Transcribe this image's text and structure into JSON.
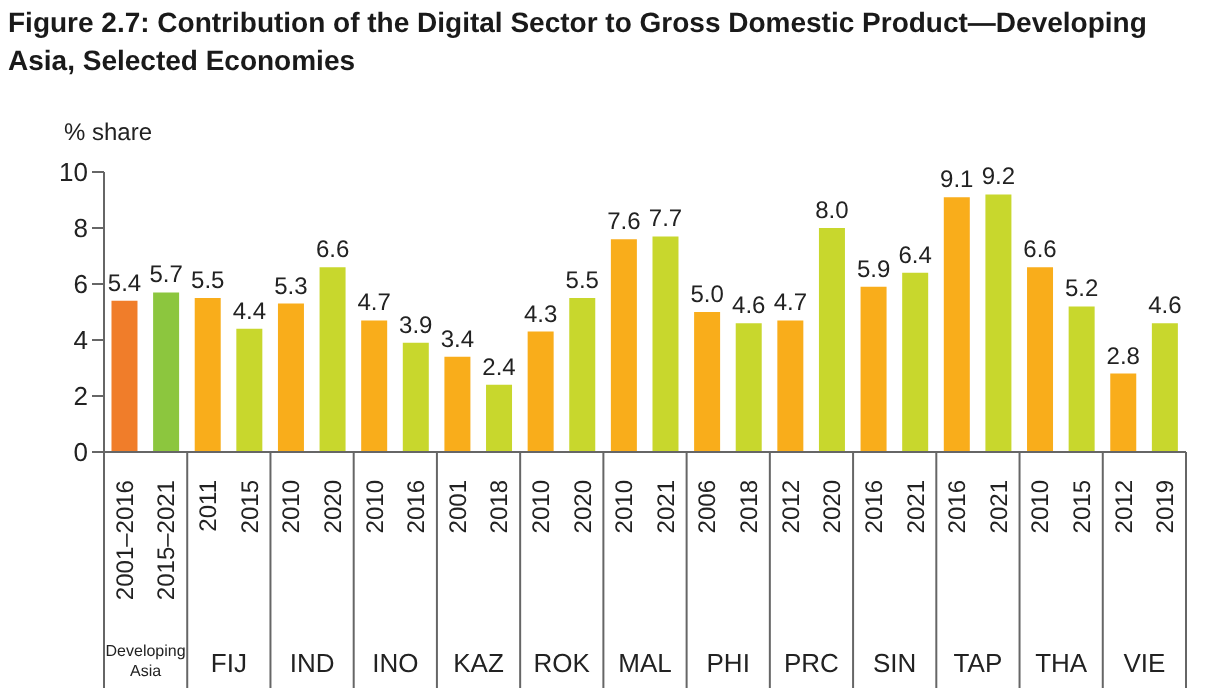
{
  "chart_data": {
    "type": "bar",
    "title": "Figure 2.7: Contribution of the Digital Sector to Gross Domestic Product—Developing Asia, Selected Economies",
    "ylabel": "% share",
    "categories": [
      "2001–2016",
      "2015–2021",
      "2011",
      "2015",
      "2010",
      "2020",
      "2010",
      "2016",
      "2001",
      "2018",
      "2010",
      "2020",
      "2010",
      "2021",
      "2006",
      "2018",
      "2012",
      "2020",
      "2016",
      "2021",
      "2016",
      "2021",
      "2010",
      "2015",
      "2012",
      "2019"
    ],
    "values": [
      5.4,
      5.7,
      5.5,
      4.4,
      5.3,
      6.6,
      4.7,
      3.9,
      3.4,
      2.4,
      4.3,
      5.5,
      7.6,
      7.7,
      5.0,
      4.6,
      4.7,
      8.0,
      5.9,
      6.4,
      9.1,
      9.2,
      6.6,
      5.2,
      2.8,
      4.6
    ],
    "colors": [
      "#f07d2a",
      "#8cc63e",
      "#f9ad1b",
      "#c8d72d",
      "#f9ad1b",
      "#c8d72d",
      "#f9ad1b",
      "#c8d72d",
      "#f9ad1b",
      "#c8d72d",
      "#f9ad1b",
      "#c8d72d",
      "#f9ad1b",
      "#c8d72d",
      "#f9ad1b",
      "#c8d72d",
      "#f9ad1b",
      "#c8d72d",
      "#f9ad1b",
      "#c8d72d",
      "#f9ad1b",
      "#c8d72d",
      "#f9ad1b",
      "#c8d72d",
      "#f9ad1b",
      "#c8d72d"
    ],
    "annotations": [
      "Developing Asia",
      "FIJ",
      "IND",
      "INO",
      "KAZ",
      "ROK",
      "MAL",
      "PHI",
      "PRC",
      "SIN",
      "TAP",
      "THA",
      "VIE"
    ],
    "value_labels": [
      "5.4",
      "5.7",
      "5.5",
      "4.4",
      "5.3",
      "6.6",
      "4.7",
      "3.9",
      "3.4",
      "2.4",
      "4.3",
      "5.5",
      "7.6",
      "7.7",
      "5.0",
      "4.6",
      "4.7",
      "8.0",
      "5.9",
      "6.4",
      "9.1",
      "9.2",
      "6.6",
      "5.2",
      "2.8",
      "4.6"
    ],
    "ylim": [
      0,
      10
    ],
    "yticks": [
      0,
      2,
      4,
      6,
      8,
      10
    ],
    "grid": false
  }
}
